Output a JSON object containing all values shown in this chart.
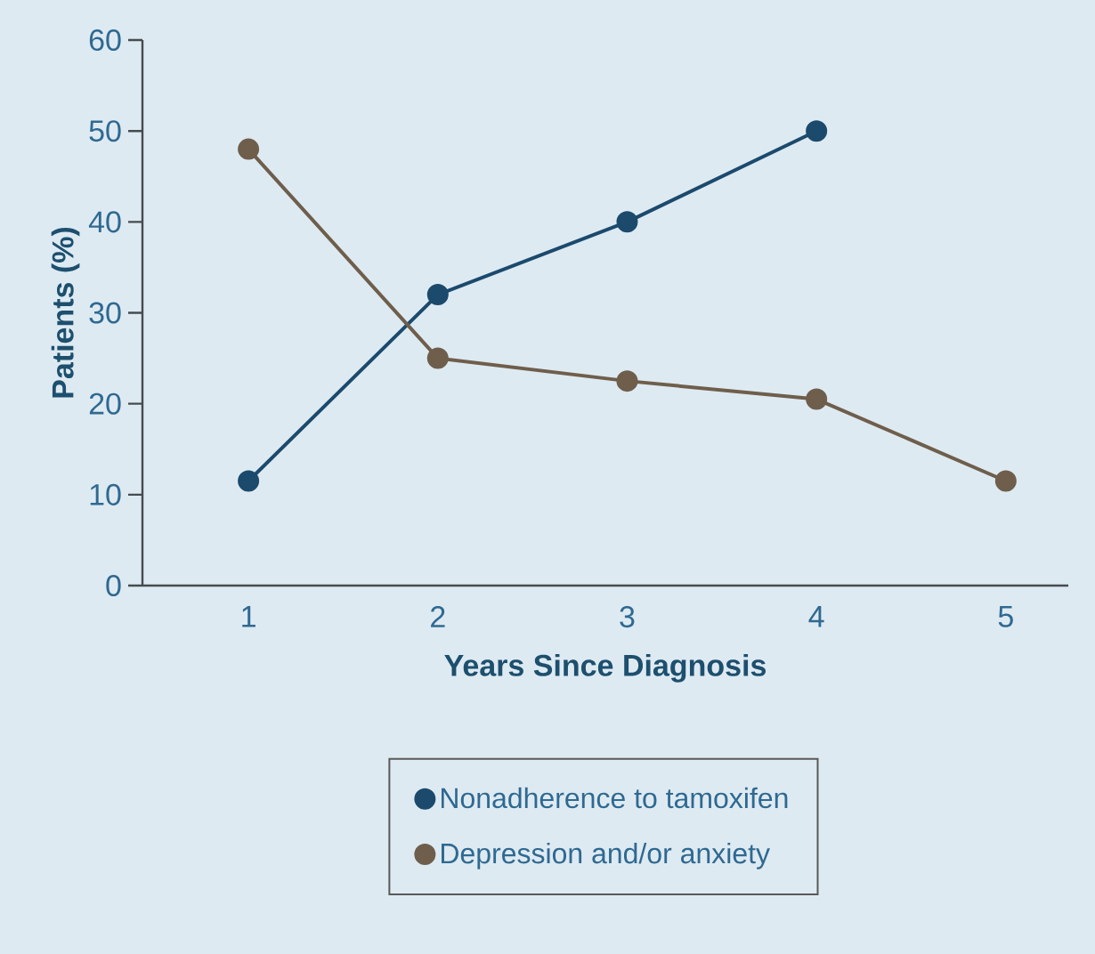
{
  "chart_data": {
    "type": "line",
    "xlabel": "Years Since Diagnosis",
    "ylabel": "Patients (%)",
    "x": [
      1,
      2,
      3,
      4,
      5
    ],
    "series": [
      {
        "name": "Nonadherence to tamoxifen",
        "color": "#1b4a6d",
        "values": [
          11.5,
          32,
          40,
          50,
          null
        ]
      },
      {
        "name": "Depression and/or anxiety",
        "color": "#6e5e4b",
        "values": [
          48,
          25,
          22.5,
          20.5,
          11.5
        ]
      }
    ],
    "xlim": [
      0.44,
      5.33
    ],
    "ylim": [
      0,
      60
    ],
    "xticks": [
      1,
      2,
      3,
      4,
      5
    ],
    "yticks": [
      0,
      10,
      20,
      30,
      40,
      50,
      60
    ],
    "legend": "bottom",
    "marker": "circle"
  }
}
